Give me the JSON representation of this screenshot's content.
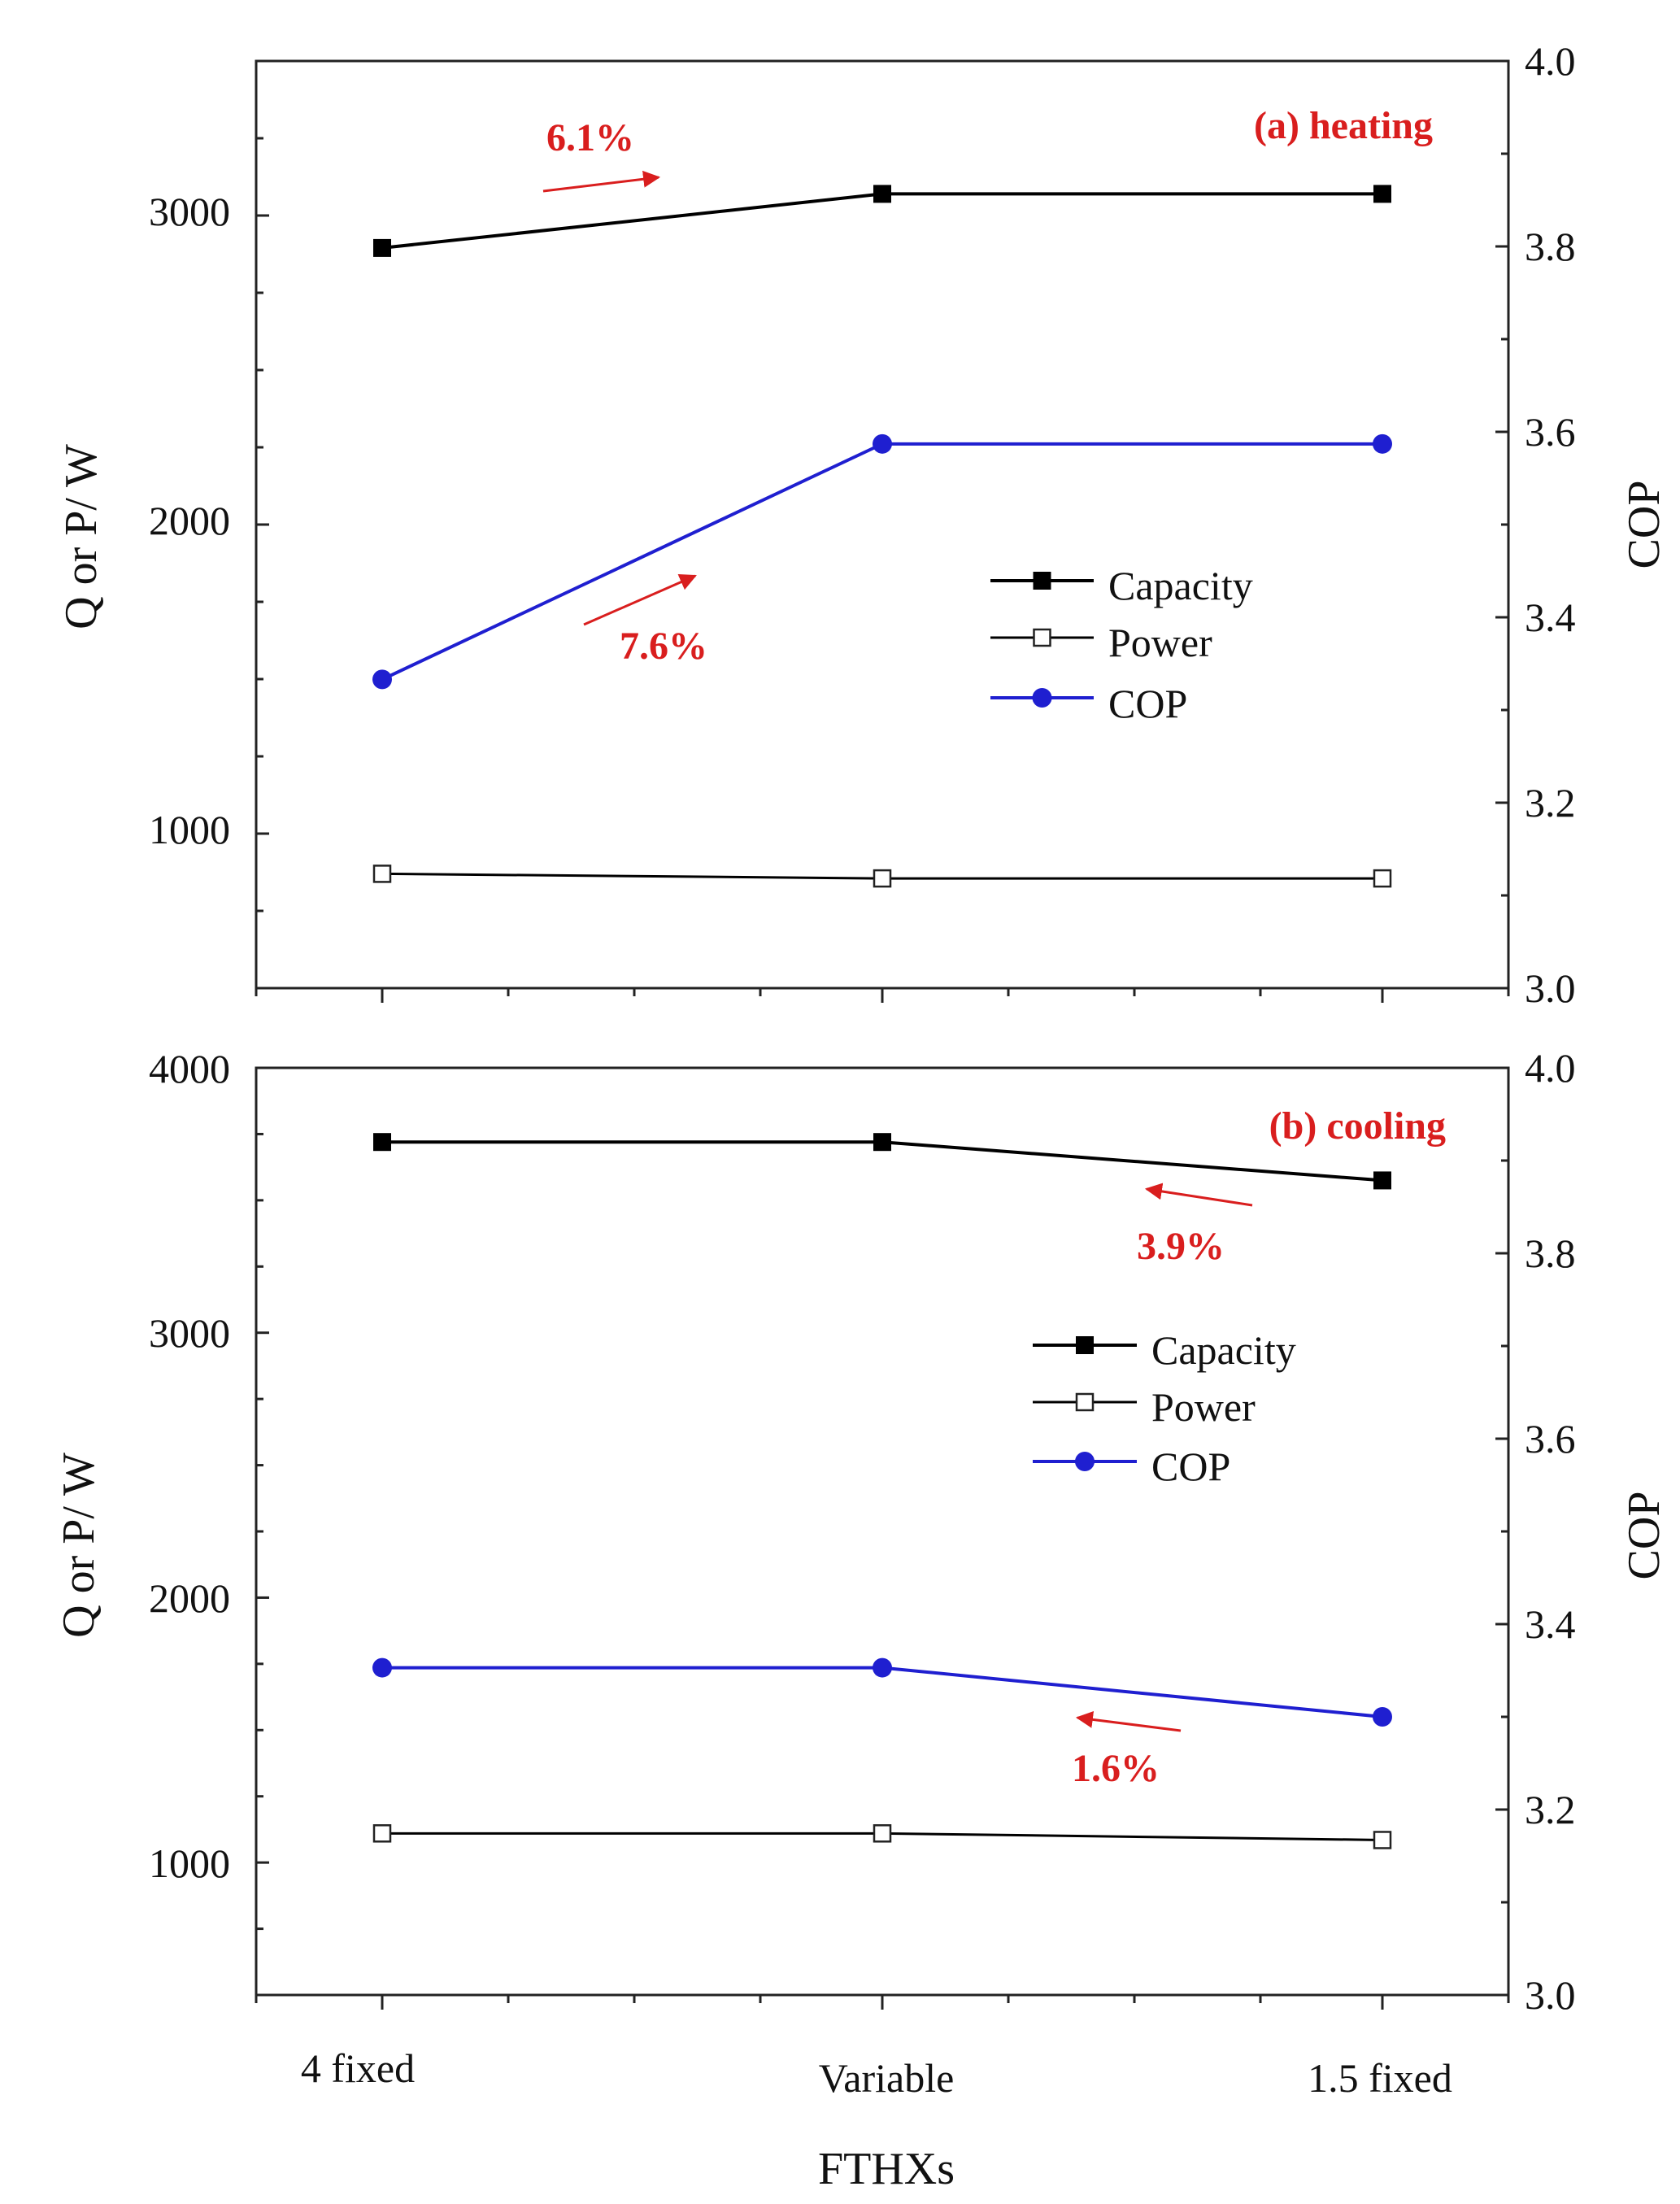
{
  "chart_data": [
    {
      "type": "line",
      "panel_title": "(a) heating",
      "categories": [
        "4 fixed",
        "Variable",
        "1.5 fixed"
      ],
      "ylabel": "Q or P/ W",
      "y2label": "COP",
      "ylim": [
        500,
        3500
      ],
      "yticks": [
        1000,
        2000,
        3000
      ],
      "y2lim": [
        3.0,
        4.0
      ],
      "y2ticks": [
        "3.0",
        "3.2",
        "3.4",
        "3.6",
        "3.8",
        "4.0"
      ],
      "series": [
        {
          "name": "Capacity",
          "axis": "left",
          "color": "#000000",
          "marker": "filled-square",
          "values": [
            2895,
            3070,
            3070
          ]
        },
        {
          "name": "Power",
          "axis": "left",
          "color": "#000000",
          "marker": "open-square",
          "values": [
            870,
            855,
            855
          ]
        },
        {
          "name": "COP",
          "axis": "right",
          "color": "#1f1fd0",
          "marker": "filled-circle",
          "values": [
            3.333,
            3.587,
            3.587
          ]
        }
      ],
      "legend": [
        "Capacity",
        "Power",
        "COP"
      ],
      "legend_position": "center-right",
      "annotations": [
        {
          "text": "6.1%",
          "color": "#d91e1e"
        },
        {
          "text": "7.6%",
          "color": "#d91e1e"
        }
      ]
    },
    {
      "type": "line",
      "panel_title": "(b) cooling",
      "categories": [
        "4 fixed",
        "Variable",
        "1.5 fixed"
      ],
      "xlabel": "FTHXs",
      "ylabel": "Q or P/ W",
      "y2label": "COP",
      "ylim": [
        500,
        4000
      ],
      "yticks": [
        1000,
        2000,
        3000,
        4000
      ],
      "y2lim": [
        3.0,
        4.0
      ],
      "y2ticks": [
        "3.0",
        "3.2",
        "3.4",
        "3.6",
        "3.8",
        "4.0"
      ],
      "series": [
        {
          "name": "Capacity",
          "axis": "left",
          "color": "#000000",
          "marker": "filled-square",
          "values": [
            3720,
            3720,
            3575
          ]
        },
        {
          "name": "Power",
          "axis": "left",
          "color": "#000000",
          "marker": "open-square",
          "values": [
            1110,
            1110,
            1085
          ]
        },
        {
          "name": "COP",
          "axis": "right",
          "color": "#1f1fd0",
          "marker": "filled-circle",
          "values": [
            3.353,
            3.353,
            3.3
          ]
        }
      ],
      "legend": [
        "Capacity",
        "Power",
        "COP"
      ],
      "legend_position": "center-right",
      "annotations": [
        {
          "text": "3.9%",
          "color": "#d91e1e"
        },
        {
          "text": "1.6%",
          "color": "#d91e1e"
        }
      ]
    }
  ]
}
